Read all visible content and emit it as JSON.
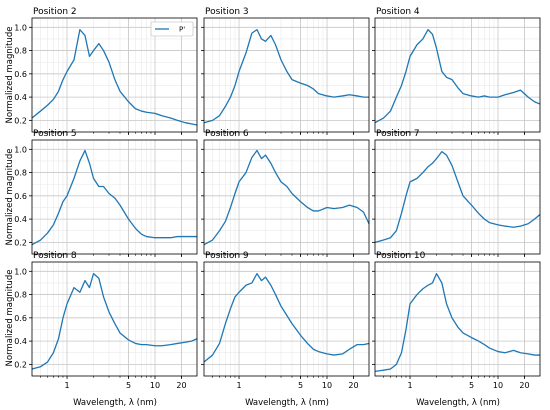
{
  "figure": {
    "ylabel": "Normalized magnitude",
    "xlabel": "Wavelength, λ (nm)",
    "line_color": "#1f77b4",
    "legend_label": "P'"
  },
  "chart_data": {
    "type": "line",
    "layout": "3x3 small multiples, shared axes",
    "xscale": "log",
    "xlim": [
      0.4,
      30
    ],
    "ylim": [
      0.1,
      1.08
    ],
    "x_ticks": [
      1,
      5,
      10,
      20
    ],
    "y_ticks": [
      0.2,
      0.4,
      0.6,
      0.8,
      1.0
    ],
    "y_tick_labels": [
      "0.2",
      "0.4",
      "0.6",
      "0.8",
      "1.0"
    ],
    "grid": true,
    "legend": {
      "panel": 0,
      "placement": "top-right",
      "entry": "P'"
    },
    "panels": [
      {
        "title": "Position 2",
        "x": [
          0.4,
          0.5,
          0.6,
          0.7,
          0.8,
          0.9,
          1.0,
          1.2,
          1.4,
          1.6,
          1.8,
          2.0,
          2.3,
          2.6,
          3.0,
          3.5,
          4.0,
          5.0,
          6.0,
          7.0,
          8.0,
          10,
          12,
          15,
          18,
          22,
          26,
          30
        ],
        "y": [
          0.22,
          0.28,
          0.33,
          0.38,
          0.45,
          0.55,
          0.62,
          0.72,
          0.98,
          0.93,
          0.75,
          0.8,
          0.86,
          0.8,
          0.7,
          0.55,
          0.45,
          0.36,
          0.3,
          0.28,
          0.27,
          0.26,
          0.24,
          0.22,
          0.2,
          0.18,
          0.17,
          0.16
        ]
      },
      {
        "title": "Position 3",
        "x": [
          0.4,
          0.5,
          0.6,
          0.7,
          0.8,
          0.9,
          1.0,
          1.2,
          1.4,
          1.6,
          1.8,
          2.0,
          2.3,
          2.6,
          3.0,
          3.5,
          4.0,
          5.0,
          6.0,
          7.0,
          8.0,
          10,
          12,
          15,
          18,
          22,
          26,
          30
        ],
        "y": [
          0.18,
          0.2,
          0.24,
          0.32,
          0.4,
          0.5,
          0.62,
          0.78,
          0.95,
          0.98,
          0.9,
          0.88,
          0.93,
          0.85,
          0.72,
          0.62,
          0.55,
          0.52,
          0.5,
          0.47,
          0.43,
          0.41,
          0.4,
          0.41,
          0.42,
          0.41,
          0.4,
          0.4
        ]
      },
      {
        "title": "Position 4",
        "x": [
          0.4,
          0.5,
          0.6,
          0.7,
          0.8,
          0.9,
          1.0,
          1.2,
          1.4,
          1.6,
          1.8,
          2.0,
          2.3,
          2.6,
          3.0,
          3.5,
          4.0,
          5.0,
          6.0,
          7.0,
          8.0,
          10,
          12,
          15,
          18,
          22,
          26,
          30
        ],
        "y": [
          0.18,
          0.22,
          0.28,
          0.4,
          0.5,
          0.62,
          0.75,
          0.85,
          0.9,
          0.98,
          0.94,
          0.82,
          0.62,
          0.57,
          0.55,
          0.48,
          0.43,
          0.41,
          0.4,
          0.41,
          0.4,
          0.4,
          0.42,
          0.44,
          0.46,
          0.4,
          0.36,
          0.34
        ]
      },
      {
        "title": "Position 5",
        "x": [
          0.4,
          0.5,
          0.6,
          0.7,
          0.8,
          0.9,
          1.0,
          1.2,
          1.4,
          1.6,
          1.8,
          2.0,
          2.3,
          2.6,
          3.0,
          3.5,
          4.0,
          5.0,
          6.0,
          7.0,
          8.0,
          10,
          12,
          15,
          18,
          22,
          26,
          30
        ],
        "y": [
          0.18,
          0.22,
          0.28,
          0.35,
          0.45,
          0.55,
          0.6,
          0.75,
          0.9,
          0.99,
          0.88,
          0.75,
          0.68,
          0.68,
          0.62,
          0.58,
          0.52,
          0.4,
          0.32,
          0.27,
          0.25,
          0.24,
          0.24,
          0.24,
          0.25,
          0.25,
          0.25,
          0.25
        ]
      },
      {
        "title": "Position 6",
        "x": [
          0.4,
          0.5,
          0.6,
          0.7,
          0.8,
          0.9,
          1.0,
          1.2,
          1.4,
          1.6,
          1.8,
          2.0,
          2.3,
          2.6,
          3.0,
          3.5,
          4.0,
          5.0,
          6.0,
          7.0,
          8.0,
          10,
          12,
          15,
          18,
          22,
          26,
          30
        ],
        "y": [
          0.18,
          0.22,
          0.3,
          0.38,
          0.5,
          0.62,
          0.72,
          0.8,
          0.93,
          0.99,
          0.92,
          0.95,
          0.88,
          0.8,
          0.72,
          0.68,
          0.62,
          0.55,
          0.5,
          0.47,
          0.47,
          0.5,
          0.49,
          0.5,
          0.52,
          0.5,
          0.46,
          0.36
        ]
      },
      {
        "title": "Position 7",
        "x": [
          0.4,
          0.5,
          0.6,
          0.7,
          0.8,
          0.9,
          1.0,
          1.2,
          1.4,
          1.6,
          1.8,
          2.0,
          2.3,
          2.6,
          3.0,
          3.5,
          4.0,
          5.0,
          6.0,
          7.0,
          8.0,
          10,
          12,
          15,
          18,
          22,
          26,
          30
        ],
        "y": [
          0.2,
          0.22,
          0.24,
          0.3,
          0.45,
          0.6,
          0.72,
          0.75,
          0.8,
          0.85,
          0.88,
          0.92,
          0.98,
          0.95,
          0.86,
          0.72,
          0.6,
          0.52,
          0.45,
          0.4,
          0.37,
          0.35,
          0.34,
          0.33,
          0.34,
          0.36,
          0.4,
          0.44
        ]
      },
      {
        "title": "Position 8",
        "x": [
          0.4,
          0.5,
          0.6,
          0.7,
          0.8,
          0.9,
          1.0,
          1.2,
          1.4,
          1.6,
          1.8,
          2.0,
          2.3,
          2.6,
          3.0,
          3.5,
          4.0,
          5.0,
          6.0,
          7.0,
          8.0,
          10,
          12,
          15,
          18,
          22,
          26,
          30
        ],
        "y": [
          0.16,
          0.18,
          0.22,
          0.3,
          0.42,
          0.6,
          0.72,
          0.86,
          0.82,
          0.92,
          0.86,
          0.98,
          0.94,
          0.78,
          0.65,
          0.55,
          0.47,
          0.41,
          0.38,
          0.37,
          0.37,
          0.36,
          0.36,
          0.37,
          0.38,
          0.39,
          0.4,
          0.42
        ]
      },
      {
        "title": "Position 9",
        "x": [
          0.4,
          0.5,
          0.6,
          0.7,
          0.8,
          0.9,
          1.0,
          1.2,
          1.4,
          1.6,
          1.8,
          2.0,
          2.3,
          2.6,
          3.0,
          3.5,
          4.0,
          5.0,
          6.0,
          7.0,
          8.0,
          10,
          12,
          15,
          18,
          22,
          26,
          30
        ],
        "y": [
          0.22,
          0.28,
          0.38,
          0.55,
          0.68,
          0.78,
          0.82,
          0.88,
          0.9,
          0.98,
          0.92,
          0.95,
          0.88,
          0.8,
          0.7,
          0.62,
          0.55,
          0.45,
          0.38,
          0.33,
          0.31,
          0.29,
          0.28,
          0.29,
          0.33,
          0.37,
          0.37,
          0.38
        ]
      },
      {
        "title": "Position 10",
        "x": [
          0.4,
          0.5,
          0.6,
          0.7,
          0.8,
          0.9,
          1.0,
          1.2,
          1.4,
          1.6,
          1.8,
          2.0,
          2.3,
          2.6,
          3.0,
          3.5,
          4.0,
          5.0,
          6.0,
          7.0,
          8.0,
          10,
          12,
          15,
          18,
          22,
          26,
          30
        ],
        "y": [
          0.14,
          0.15,
          0.16,
          0.2,
          0.3,
          0.5,
          0.72,
          0.8,
          0.85,
          0.88,
          0.9,
          0.98,
          0.9,
          0.72,
          0.6,
          0.52,
          0.47,
          0.43,
          0.4,
          0.37,
          0.34,
          0.31,
          0.3,
          0.32,
          0.3,
          0.29,
          0.28,
          0.28
        ]
      }
    ]
  }
}
